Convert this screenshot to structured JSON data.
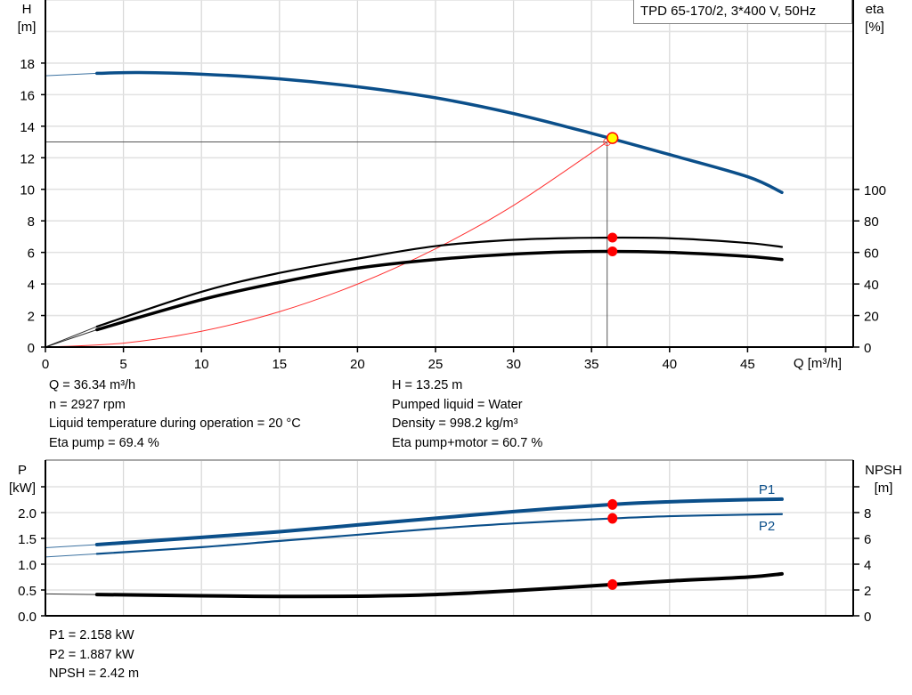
{
  "title": "TPD 65-170/2, 3*400 V, 50Hz",
  "colors": {
    "head": "#0b4f8a",
    "power": "#0b4f8a",
    "efficiency": "#000000",
    "npsh": "#000000",
    "system": "#ff3030",
    "operating_point": "#ffff00",
    "marker": "#ff0000",
    "grid": "#d9d9d9"
  },
  "info_top": {
    "left": [
      "Q = 36.34 m³/h",
      "n = 2927 rpm",
      "Liquid temperature during operation = 20 °C",
      "Eta pump = 69.4 %"
    ],
    "right": [
      "H = 13.25 m",
      "Pumped liquid = Water",
      "Density = 998.2 kg/m³",
      "Eta pump+motor = 60.7 %"
    ]
  },
  "info_bottom": [
    "P1 = 2.158 kW",
    "P2 = 1.887 kW",
    "NPSH = 2.42 m"
  ],
  "chart_data": [
    {
      "type": "line",
      "xlabel": "Q [m³/h]",
      "ylabel": [
        "H",
        "[m]"
      ],
      "y2label": [
        "eta",
        "[%]"
      ],
      "xlim": [
        0,
        51.8
      ],
      "ylim": [
        0,
        22
      ],
      "y2lim": [
        0,
        124
      ],
      "xticks": [
        0,
        5,
        10,
        15,
        20,
        25,
        30,
        35,
        40,
        45
      ],
      "yticks": [
        0,
        2,
        4,
        6,
        8,
        10,
        12,
        14,
        16,
        18
      ],
      "y2ticks": [
        0,
        20,
        40,
        60,
        80,
        100
      ],
      "grid": true,
      "curve_start_q": 3.3,
      "series": [
        {
          "key": "H",
          "axis": "y",
          "x": [
            0,
            3.3,
            6,
            10,
            15,
            20,
            25,
            30,
            35,
            40,
            45,
            47.2
          ],
          "y": [
            17.2,
            17.35,
            17.4,
            17.3,
            17.0,
            16.5,
            15.8,
            14.8,
            13.55,
            12.2,
            10.8,
            9.8
          ]
        },
        {
          "key": "eta_pump",
          "axis": "y2",
          "x": [
            0,
            3.3,
            10,
            15,
            20,
            25,
            30,
            35,
            40,
            45,
            47.2
          ],
          "y": [
            0,
            13,
            35,
            47,
            56,
            64,
            68,
            69.3,
            69,
            66,
            63.5
          ]
        },
        {
          "key": "eta_pump_motor",
          "axis": "y2",
          "x": [
            0,
            3.3,
            10,
            15,
            20,
            25,
            30,
            35,
            40,
            45,
            47.2
          ],
          "y": [
            0,
            11,
            30,
            41,
            50,
            55.5,
            59,
            60.6,
            60,
            57.5,
            55.5
          ]
        },
        {
          "key": "system_curve",
          "axis": "y",
          "x": [
            0,
            5,
            10,
            15,
            20,
            25,
            30,
            36.0
          ],
          "y": [
            0,
            0.25,
            1.0,
            2.24,
            3.99,
            6.23,
            8.98,
            13.0
          ]
        }
      ],
      "duty_point": {
        "q": 36.0,
        "h": 13.0
      },
      "operating_point": {
        "q": 36.34,
        "h": 13.25,
        "eta_pump": 69.4,
        "eta_pump_motor": 60.7
      }
    },
    {
      "type": "line",
      "ylabel": [
        "P",
        "[kW]"
      ],
      "y2label": [
        "NPSH",
        "[m]"
      ],
      "xlim": [
        0,
        51.8
      ],
      "ylim": [
        0,
        2.5
      ],
      "y2lim": [
        0,
        10
      ],
      "yticks": [
        0.0,
        0.5,
        1.0,
        1.5,
        2.0
      ],
      "ytick_labels": [
        "0.0",
        "0.5",
        "1.0",
        "1.5",
        "2.0"
      ],
      "y2ticks": [
        0,
        2,
        4,
        6,
        8
      ],
      "grid": true,
      "curve_start_q": 3.3,
      "series": [
        {
          "key": "P1",
          "name": "P1",
          "axis": "y",
          "x": [
            0,
            3.3,
            10,
            15,
            20,
            25,
            30,
            36.34,
            40,
            45,
            47.2
          ],
          "y": [
            1.32,
            1.38,
            1.52,
            1.63,
            1.76,
            1.89,
            2.02,
            2.158,
            2.21,
            2.25,
            2.26
          ]
        },
        {
          "key": "P2",
          "name": "P2",
          "axis": "y",
          "x": [
            0,
            3.3,
            10,
            15,
            20,
            25,
            30,
            36.34,
            40,
            45,
            47.2
          ],
          "y": [
            1.14,
            1.2,
            1.33,
            1.45,
            1.57,
            1.69,
            1.79,
            1.887,
            1.93,
            1.96,
            1.97
          ]
        },
        {
          "key": "NPSH",
          "axis": "y2",
          "x": [
            0,
            3.3,
            10,
            15,
            20,
            25,
            30,
            36.34,
            40,
            45,
            47.2
          ],
          "y": [
            1.7,
            1.65,
            1.55,
            1.5,
            1.52,
            1.65,
            1.95,
            2.42,
            2.7,
            3.0,
            3.25
          ]
        }
      ],
      "operating_point": {
        "q": 36.34,
        "p1": 2.158,
        "p2": 1.887,
        "npsh": 2.42
      }
    }
  ]
}
